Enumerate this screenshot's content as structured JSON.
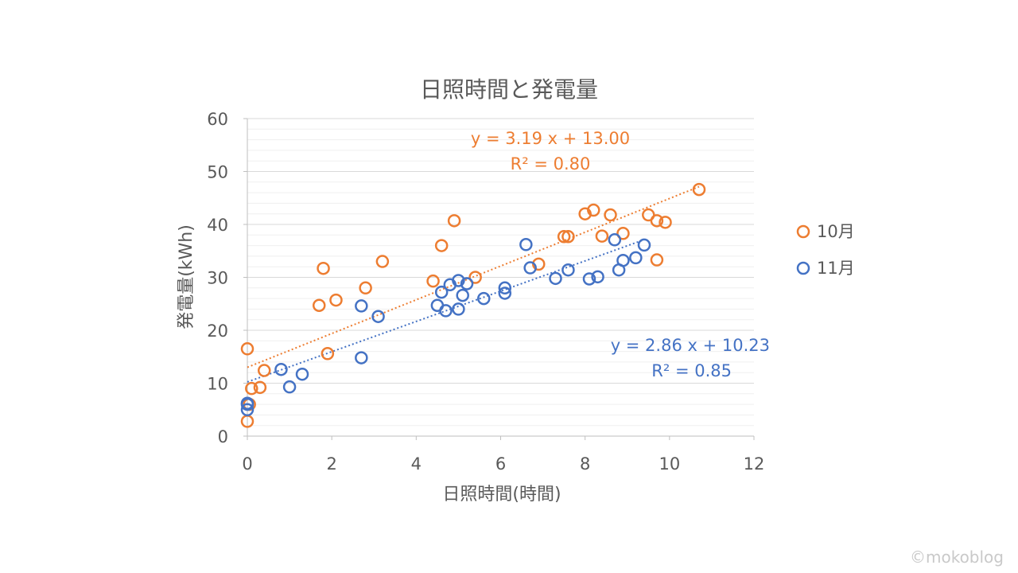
{
  "chart_data": {
    "type": "scatter",
    "title": "日照時間と発電量",
    "xlabel": "日照時間(時間)",
    "ylabel": "発電量(kWh)",
    "xlim": [
      0,
      12
    ],
    "ylim": [
      0,
      60
    ],
    "xticks": [
      "0",
      "2",
      "4",
      "6",
      "8",
      "10",
      "12"
    ],
    "yticks": [
      "0",
      "10",
      "20",
      "30",
      "40",
      "50",
      "60"
    ],
    "grid": "horizontal",
    "legend": "right",
    "series": [
      {
        "name": "10月",
        "color": "#ED7D31",
        "points": [
          [
            0.0,
            16.5
          ],
          [
            0.0,
            2.8
          ],
          [
            0.05,
            6.0
          ],
          [
            0.1,
            9.0
          ],
          [
            0.3,
            9.2
          ],
          [
            0.4,
            12.4
          ],
          [
            1.7,
            24.7
          ],
          [
            1.8,
            31.7
          ],
          [
            1.9,
            15.6
          ],
          [
            2.1,
            25.7
          ],
          [
            2.8,
            28.0
          ],
          [
            3.2,
            33.0
          ],
          [
            4.4,
            29.3
          ],
          [
            4.6,
            36.0
          ],
          [
            4.9,
            40.7
          ],
          [
            5.4,
            30.0
          ],
          [
            6.9,
            32.5
          ],
          [
            7.5,
            37.7
          ],
          [
            7.6,
            37.7
          ],
          [
            8.0,
            42.0
          ],
          [
            8.2,
            42.7
          ],
          [
            8.4,
            37.8
          ],
          [
            8.6,
            41.8
          ],
          [
            8.9,
            38.3
          ],
          [
            9.5,
            41.8
          ],
          [
            9.7,
            40.7
          ],
          [
            9.7,
            33.3
          ],
          [
            9.9,
            40.4
          ],
          [
            10.7,
            46.6
          ]
        ],
        "trendline": {
          "slope": 3.19,
          "intercept": 13.0,
          "x_range": [
            0,
            10.7
          ]
        },
        "equation": "y = 3.19 x + 13.00",
        "r2": "R² = 0.80"
      },
      {
        "name": "11月",
        "color": "#4472C4",
        "points": [
          [
            0.0,
            5.0
          ],
          [
            0.0,
            6.2
          ],
          [
            0.0,
            6.0
          ],
          [
            0.8,
            12.6
          ],
          [
            1.0,
            9.3
          ],
          [
            1.3,
            11.7
          ],
          [
            2.7,
            24.6
          ],
          [
            2.7,
            14.8
          ],
          [
            3.1,
            22.6
          ],
          [
            4.5,
            24.7
          ],
          [
            4.6,
            27.2
          ],
          [
            4.7,
            23.7
          ],
          [
            4.8,
            28.6
          ],
          [
            5.0,
            29.4
          ],
          [
            5.0,
            24.0
          ],
          [
            5.1,
            26.6
          ],
          [
            5.2,
            28.8
          ],
          [
            5.6,
            26.0
          ],
          [
            6.1,
            28.0
          ],
          [
            6.1,
            27.0
          ],
          [
            6.6,
            36.2
          ],
          [
            6.7,
            31.8
          ],
          [
            7.3,
            29.8
          ],
          [
            7.6,
            31.4
          ],
          [
            8.1,
            29.7
          ],
          [
            8.3,
            30.1
          ],
          [
            8.7,
            37.1
          ],
          [
            8.8,
            31.4
          ],
          [
            8.9,
            33.2
          ],
          [
            9.2,
            33.7
          ],
          [
            9.4,
            36.1
          ]
        ],
        "trendline": {
          "slope": 2.86,
          "intercept": 10.23,
          "x_range": [
            0,
            9.4
          ]
        },
        "equation": "y = 2.86 x + 10.23",
        "r2": "R² = 0.85"
      }
    ]
  },
  "watermark": "©mokoblog"
}
